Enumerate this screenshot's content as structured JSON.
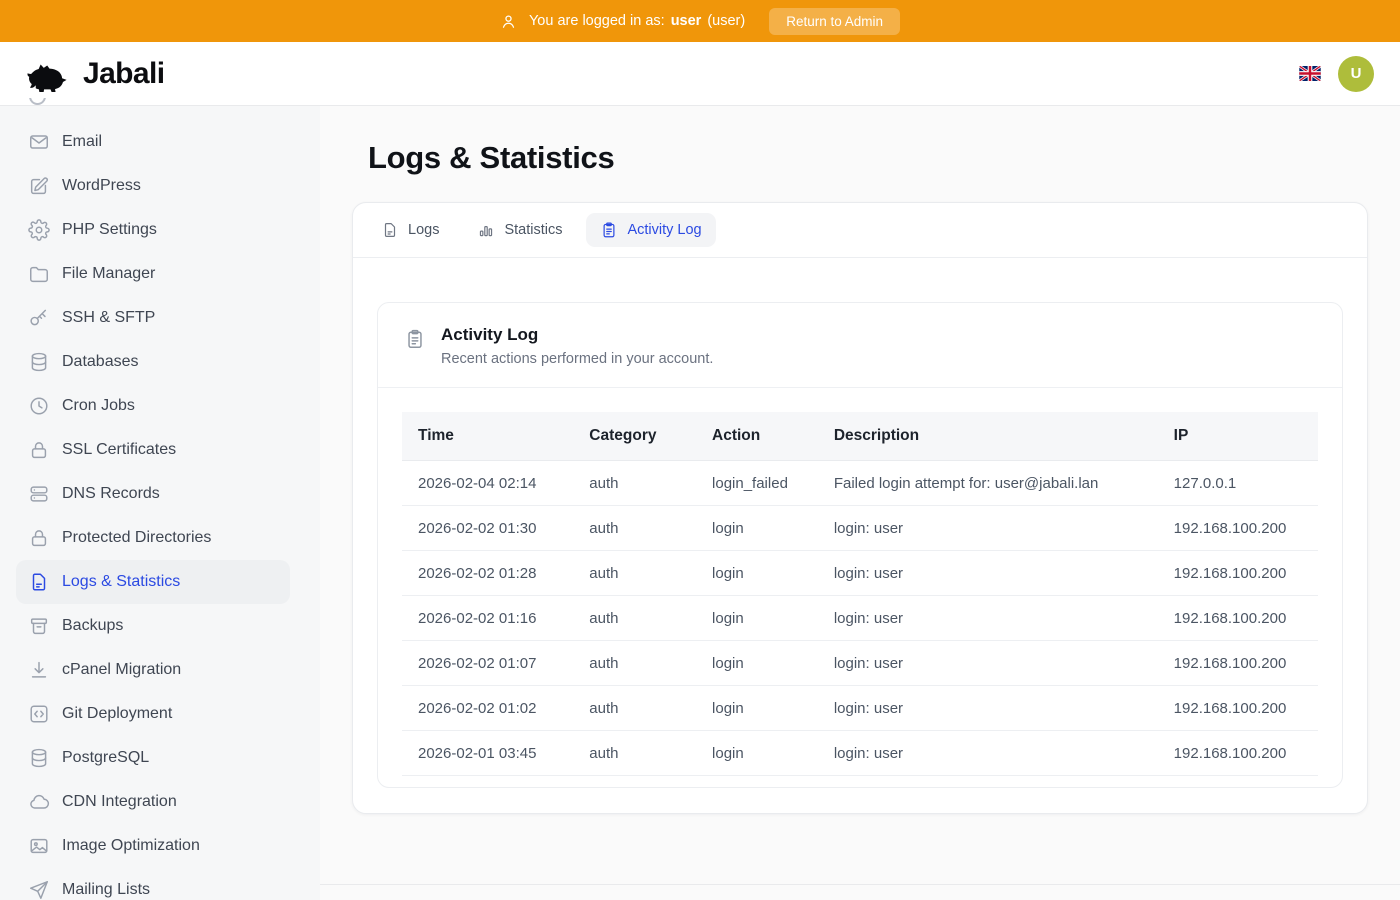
{
  "colors": {
    "accent_orange": "#f0960a",
    "accent_blue": "#2b4ae2",
    "avatar_green": "#aebd3b"
  },
  "topbar": {
    "prefix": "You are logged in as:",
    "username": "user",
    "role": "(user)",
    "return_label": "Return to Admin"
  },
  "header": {
    "brand": "Jabali",
    "avatar_initial": "U",
    "language": "uk-flag-icon"
  },
  "sidebar": {
    "items": [
      {
        "label": "Email",
        "icon": "mail",
        "active": false
      },
      {
        "label": "WordPress",
        "icon": "edit",
        "active": false
      },
      {
        "label": "PHP Settings",
        "icon": "gear",
        "active": false
      },
      {
        "label": "File Manager",
        "icon": "folder",
        "active": false
      },
      {
        "label": "SSH & SFTP",
        "icon": "key",
        "active": false
      },
      {
        "label": "Databases",
        "icon": "database",
        "active": false
      },
      {
        "label": "Cron Jobs",
        "icon": "clock",
        "active": false
      },
      {
        "label": "SSL Certificates",
        "icon": "lock",
        "active": false
      },
      {
        "label": "DNS Records",
        "icon": "server",
        "active": false
      },
      {
        "label": "Protected Directories",
        "icon": "lock",
        "active": false
      },
      {
        "label": "Logs & Statistics",
        "icon": "file-text",
        "active": true
      },
      {
        "label": "Backups",
        "icon": "archive",
        "active": false
      },
      {
        "label": "cPanel Migration",
        "icon": "download",
        "active": false
      },
      {
        "label": "Git Deployment",
        "icon": "code",
        "active": false
      },
      {
        "label": "PostgreSQL",
        "icon": "database",
        "active": false
      },
      {
        "label": "CDN Integration",
        "icon": "cloud",
        "active": false
      },
      {
        "label": "Image Optimization",
        "icon": "image",
        "active": false
      },
      {
        "label": "Mailing Lists",
        "icon": "send",
        "active": false
      }
    ]
  },
  "page": {
    "title": "Logs & Statistics"
  },
  "tabs": [
    {
      "label": "Logs",
      "icon": "file-text",
      "active": false
    },
    {
      "label": "Statistics",
      "icon": "bar-chart",
      "active": false
    },
    {
      "label": "Activity Log",
      "icon": "clipboard",
      "active": true
    }
  ],
  "panel": {
    "icon": "clipboard",
    "title": "Activity Log",
    "subtitle": "Recent actions performed in your account."
  },
  "table": {
    "headers": [
      "Time",
      "Category",
      "Action",
      "Description",
      "IP"
    ],
    "rows": [
      [
        "2026-02-04 02:14",
        "auth",
        "login_failed",
        "Failed login attempt for: user@jabali.lan",
        "127.0.0.1"
      ],
      [
        "2026-02-02 01:30",
        "auth",
        "login",
        "login: user",
        "192.168.100.200"
      ],
      [
        "2026-02-02 01:28",
        "auth",
        "login",
        "login: user",
        "192.168.100.200"
      ],
      [
        "2026-02-02 01:16",
        "auth",
        "login",
        "login: user",
        "192.168.100.200"
      ],
      [
        "2026-02-02 01:07",
        "auth",
        "login",
        "login: user",
        "192.168.100.200"
      ],
      [
        "2026-02-02 01:02",
        "auth",
        "login",
        "login: user",
        "192.168.100.200"
      ],
      [
        "2026-02-01 03:45",
        "auth",
        "login",
        "login: user",
        "192.168.100.200"
      ]
    ]
  }
}
